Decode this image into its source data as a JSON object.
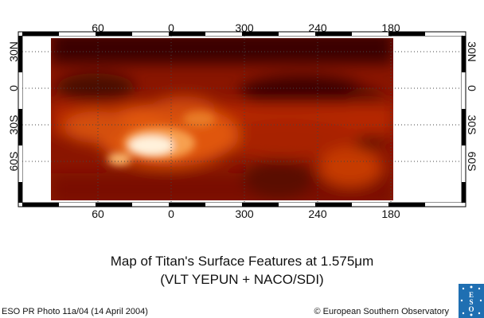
{
  "map": {
    "top_longitude_labels": [
      "60",
      "0",
      "300",
      "240",
      "180"
    ],
    "bottom_longitude_labels": [
      "60",
      "0",
      "300",
      "240",
      "180"
    ],
    "left_latitude_labels": [
      "30N",
      "0",
      "30S",
      "60S"
    ],
    "right_latitude_labels": [
      "30N",
      "0",
      "30S",
      "60S"
    ],
    "colormap": [
      "#2a0300",
      "#6b0c00",
      "#b02a00",
      "#e35a0c",
      "#f7a050",
      "#ffffff"
    ]
  },
  "title": {
    "line1": "Map of Titan's Surface Features at 1.575μm",
    "line2": "(VLT YEPUN + NACO/SDI)"
  },
  "credits": {
    "left": "ESO PR Photo 11a/04 (14 April 2004)",
    "right": "© European Southern Observatory"
  },
  "logo": {
    "text": "ESO",
    "color": "#1f6fb2"
  }
}
